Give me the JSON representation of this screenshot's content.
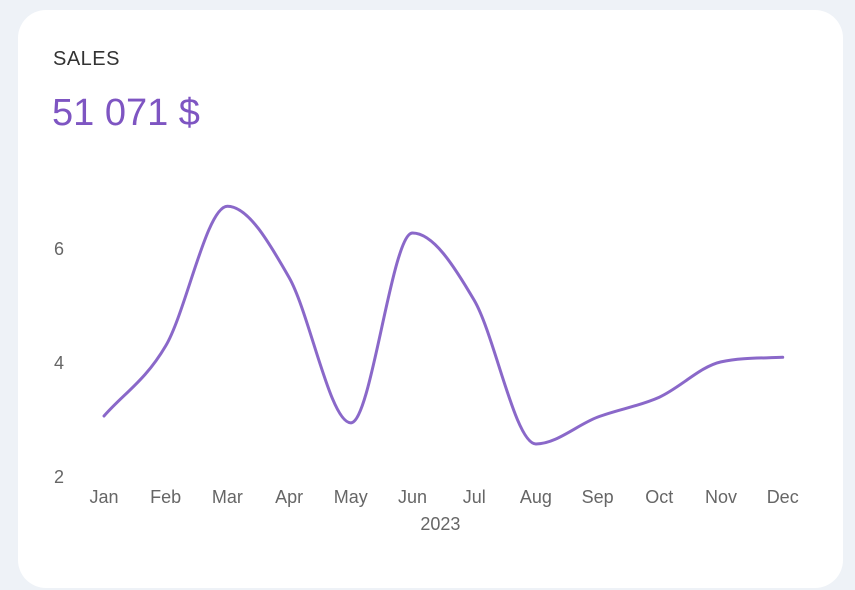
{
  "card": {
    "title": "SALES",
    "value": "51 071 $"
  },
  "colors": {
    "line": "#8a68c9",
    "value": "#7e55c2",
    "background": "#eef2f7",
    "card": "#ffffff"
  },
  "chart_data": {
    "type": "line",
    "x": [
      "Jan",
      "Feb",
      "Mar",
      "Apr",
      "May",
      "Jun",
      "Jul",
      "Aug",
      "Sep",
      "Oct",
      "Nov",
      "Dec"
    ],
    "series": [
      {
        "values": [
          3.07,
          4.3,
          6.75,
          5.5,
          2.95,
          6.28,
          5.1,
          2.58,
          3.05,
          3.4,
          4.02,
          4.1
        ]
      }
    ],
    "xlabel": "2023",
    "ylabel": "",
    "yticks": [
      2,
      4,
      6
    ],
    "ylim": [
      2,
      7.2
    ],
    "smooth": true,
    "grid": false,
    "legend": "none"
  }
}
